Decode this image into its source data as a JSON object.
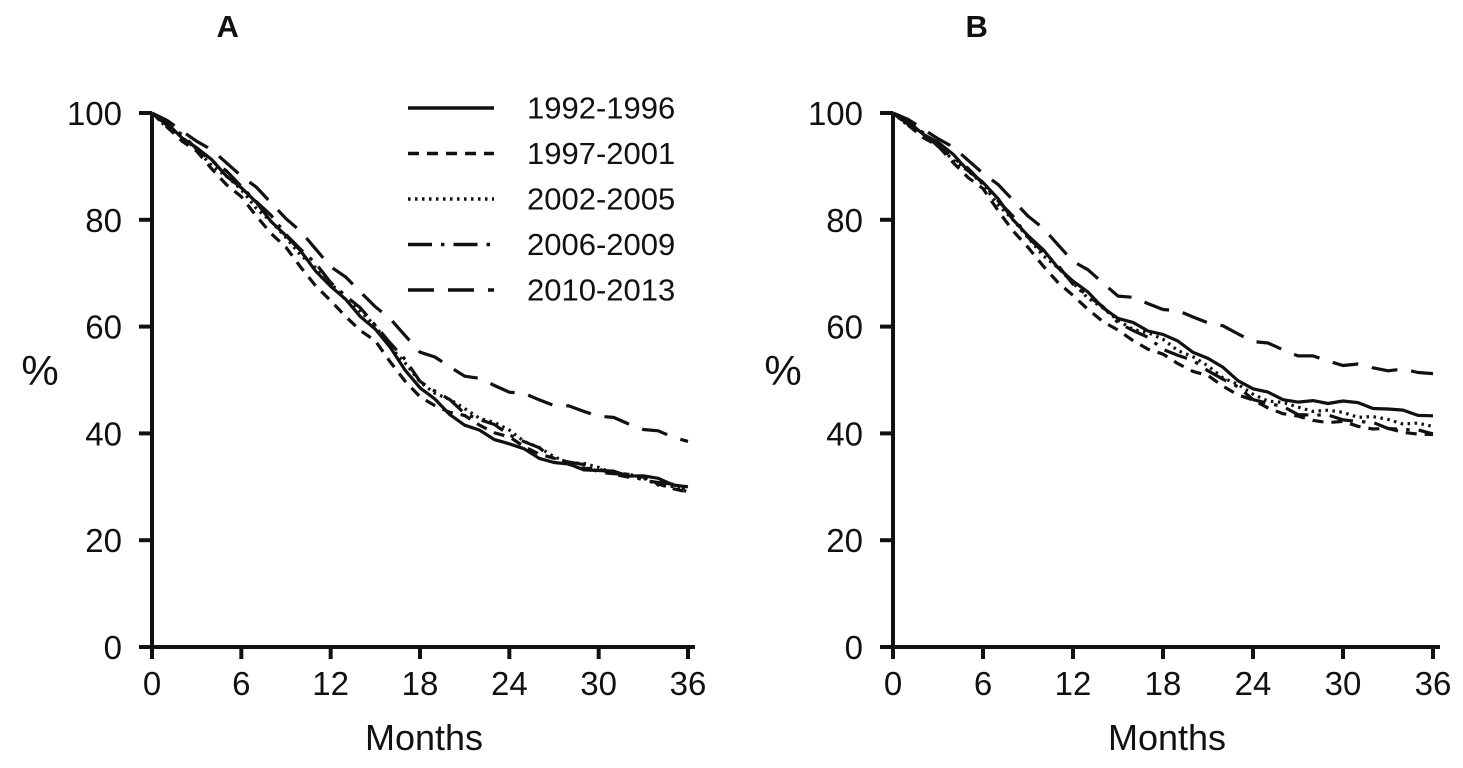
{
  "figure_titles": {
    "panel_a": "A",
    "panel_b": "B"
  },
  "axis_labels": {
    "y": "%",
    "x": "Months"
  },
  "colors": {
    "line": "#111111",
    "background": "#ffffff"
  },
  "legend": {
    "position": "inside panel A, upper right",
    "entries": [
      {
        "label": "1992-1996",
        "style": "solid"
      },
      {
        "label": "1997-2001",
        "style": "dashed-short"
      },
      {
        "label": "2002-2005",
        "style": "dotted"
      },
      {
        "label": "2006-2009",
        "style": "dash-dot"
      },
      {
        "label": "2010-2013",
        "style": "dashed-long"
      }
    ]
  },
  "chart_data": [
    {
      "type": "line",
      "panel": "A",
      "title": "A",
      "xlabel": "Months",
      "ylabel": "%",
      "xlim": [
        0,
        36
      ],
      "ylim": [
        0,
        100
      ],
      "xticks": [
        0,
        6,
        12,
        18,
        24,
        30,
        36
      ],
      "yticks": [
        0,
        20,
        40,
        60,
        80,
        100
      ],
      "grid": false,
      "legend_position": "upper right inside",
      "x": [
        0,
        3,
        6,
        9,
        12,
        15,
        18,
        21,
        24,
        27,
        30,
        33,
        36
      ],
      "series": [
        {
          "name": "1992-1996",
          "linestyle": "solid",
          "values": [
            100,
            93.5,
            86,
            77,
            67.5,
            59.5,
            48.5,
            41.5,
            38,
            34.5,
            33,
            32,
            30
          ]
        },
        {
          "name": "1997-2001",
          "linestyle": "dashed-short",
          "values": [
            100,
            92.5,
            84,
            74.5,
            64.5,
            57,
            46.5,
            43,
            39,
            35,
            33,
            31.5,
            29
          ]
        },
        {
          "name": "2002-2005",
          "linestyle": "dotted",
          "values": [
            100,
            93,
            85.5,
            76.5,
            68,
            60,
            49.5,
            44.5,
            40.5,
            35.5,
            33.5,
            31.5,
            29
          ]
        },
        {
          "name": "2006-2009",
          "linestyle": "dash-dot",
          "values": [
            100,
            93.5,
            86.5,
            77.5,
            68.5,
            60.5,
            50,
            44,
            40,
            35.5,
            33,
            31.5,
            29.5
          ]
        },
        {
          "name": "2010-2013",
          "linestyle": "dashed-long",
          "values": [
            100,
            95,
            88.5,
            80.5,
            71.5,
            64,
            55.5,
            51,
            48,
            45.5,
            43.5,
            41,
            38.5
          ]
        }
      ]
    },
    {
      "type": "line",
      "panel": "B",
      "title": "B",
      "xlabel": "Months",
      "ylabel": "%",
      "xlim": [
        0,
        36
      ],
      "ylim": [
        0,
        100
      ],
      "xticks": [
        0,
        6,
        12,
        18,
        24,
        30,
        36
      ],
      "yticks": [
        0,
        20,
        40,
        60,
        80,
        100
      ],
      "grid": false,
      "legend_position": "none",
      "x": [
        0,
        3,
        6,
        9,
        12,
        15,
        18,
        21,
        24,
        27,
        30,
        33,
        36
      ],
      "series": [
        {
          "name": "1992-1996",
          "linestyle": "solid",
          "values": [
            100,
            94.5,
            87,
            77,
            68.5,
            61.5,
            58.5,
            54,
            48.3,
            45.8,
            46,
            44.5,
            43.3
          ]
        },
        {
          "name": "1997-2001",
          "linestyle": "dashed-short",
          "values": [
            100,
            93.5,
            85.5,
            74.5,
            65.5,
            59,
            54.5,
            50.5,
            45.9,
            42.9,
            41.9,
            40.6,
            39.8
          ]
        },
        {
          "name": "2002-2005",
          "linestyle": "dotted",
          "values": [
            100,
            94,
            86.5,
            76.5,
            68,
            61,
            57.5,
            52.5,
            47.2,
            44.8,
            43.8,
            42.5,
            41.3
          ]
        },
        {
          "name": "2006-2009",
          "linestyle": "dash-dot",
          "values": [
            100,
            94,
            87,
            77,
            68.2,
            61,
            56,
            52,
            46.6,
            43.8,
            42.8,
            41.2,
            39.9
          ]
        },
        {
          "name": "2010-2013",
          "linestyle": "dashed-long",
          "values": [
            100,
            95.5,
            89,
            81,
            72.5,
            66,
            63.5,
            61,
            57.5,
            54.8,
            53,
            52,
            51.2
          ]
        }
      ]
    }
  ]
}
